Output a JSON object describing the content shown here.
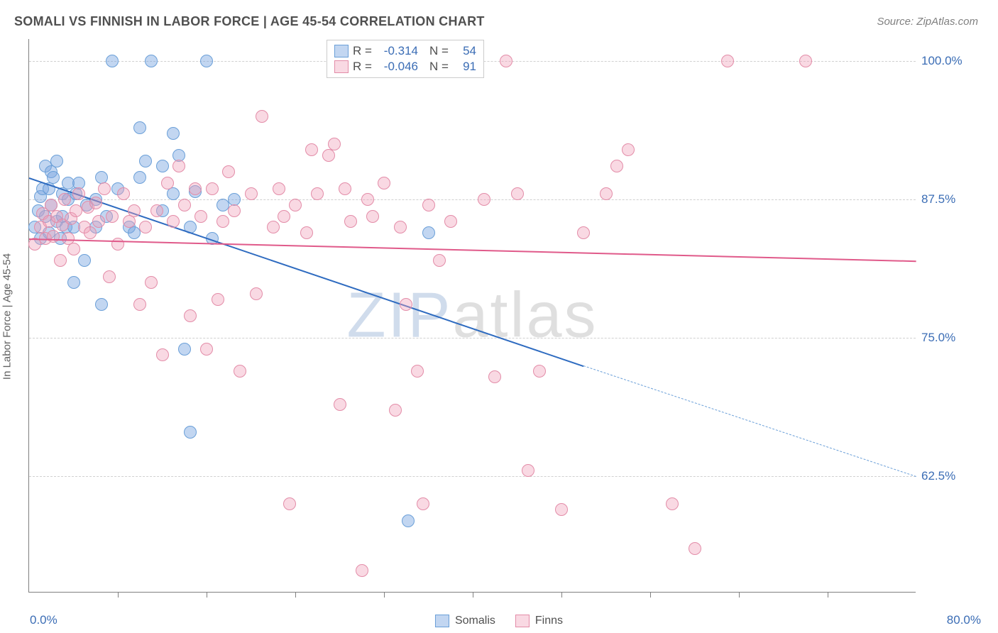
{
  "chart": {
    "type": "scatter",
    "title": "SOMALI VS FINNISH IN LABOR FORCE | AGE 45-54 CORRELATION CHART",
    "source": "Source: ZipAtlas.com",
    "ylabel": "In Labor Force | Age 45-54",
    "watermark_zip": "ZIP",
    "watermark_atlas": "atlas",
    "xlim": [
      0,
      80
    ],
    "ylim": [
      52,
      102
    ],
    "x_min_label": "0.0%",
    "x_max_label": "80.0%",
    "xticks": [
      8,
      16,
      24,
      32,
      40,
      48,
      56,
      64,
      72
    ],
    "yticks": [
      {
        "v": 100.0,
        "label": "100.0%"
      },
      {
        "v": 87.5,
        "label": "87.5%"
      },
      {
        "v": 75.0,
        "label": "75.0%"
      },
      {
        "v": 62.5,
        "label": "62.5%"
      }
    ],
    "grid_color": "#d0d0d0",
    "axis_color": "#808080",
    "tick_label_color": "#3b6db5",
    "series": [
      {
        "name": "Somalis",
        "color_fill": "rgba(120,165,225,0.45)",
        "color_stroke": "#6a9fd8",
        "r_label": "R =",
        "r_value": "-0.314",
        "n_label": "N =",
        "n_value": "54",
        "trend": {
          "x0": 0,
          "y0": 89.5,
          "x1": 50,
          "y1": 72.5,
          "color": "#2e6bc0",
          "width": 2.5,
          "dash": false
        },
        "trend_ext": {
          "x0": 50,
          "y0": 72.5,
          "x1": 80,
          "y1": 62.5,
          "color": "#6a9fd8",
          "width": 1.5,
          "dash": true
        },
        "points": [
          [
            0.5,
            85
          ],
          [
            0.8,
            86.5
          ],
          [
            1,
            84
          ],
          [
            1,
            87.8
          ],
          [
            1.2,
            88.5
          ],
          [
            1.5,
            86
          ],
          [
            1.5,
            90.5
          ],
          [
            1.8,
            84.5
          ],
          [
            1.8,
            88.5
          ],
          [
            2,
            90
          ],
          [
            2,
            87
          ],
          [
            2.2,
            89.5
          ],
          [
            2.5,
            85.5
          ],
          [
            2.5,
            91
          ],
          [
            2.8,
            84
          ],
          [
            3,
            88
          ],
          [
            3,
            86
          ],
          [
            3.3,
            85
          ],
          [
            3.5,
            87.5
          ],
          [
            3.5,
            89
          ],
          [
            4,
            80
          ],
          [
            4,
            85
          ],
          [
            4.2,
            88
          ],
          [
            4.5,
            89
          ],
          [
            5,
            82
          ],
          [
            5.2,
            87
          ],
          [
            6,
            85
          ],
          [
            6,
            87.5
          ],
          [
            6.5,
            89.5
          ],
          [
            6.5,
            78
          ],
          [
            7,
            86
          ],
          [
            7.5,
            100
          ],
          [
            8,
            88.5
          ],
          [
            9,
            85
          ],
          [
            9.5,
            84.5
          ],
          [
            10,
            94
          ],
          [
            10,
            89.5
          ],
          [
            10.5,
            91
          ],
          [
            11,
            100
          ],
          [
            12,
            86.5
          ],
          [
            12,
            90.5
          ],
          [
            13,
            88
          ],
          [
            13,
            93.5
          ],
          [
            13.5,
            91.5
          ],
          [
            14,
            74
          ],
          [
            14.5,
            85
          ],
          [
            14.5,
            66.5
          ],
          [
            15,
            88.2
          ],
          [
            16,
            100
          ],
          [
            16.5,
            84
          ],
          [
            17.5,
            87
          ],
          [
            18.5,
            87.5
          ],
          [
            34.2,
            58.5
          ],
          [
            36,
            84.5
          ]
        ]
      },
      {
        "name": "Finns",
        "color_fill": "rgba(240,160,185,0.40)",
        "color_stroke": "#e38ca8",
        "r_label": "R =",
        "r_value": "-0.046",
        "n_label": "N =",
        "n_value": "91",
        "trend": {
          "x0": 0,
          "y0": 84.0,
          "x1": 80,
          "y1": 82.0,
          "color": "#e05a8a",
          "width": 2.5,
          "dash": false
        },
        "points": [
          [
            0.5,
            83.5
          ],
          [
            1,
            85
          ],
          [
            1.2,
            86.2
          ],
          [
            1.5,
            84
          ],
          [
            1.8,
            85.5
          ],
          [
            2,
            87
          ],
          [
            2.2,
            84.2
          ],
          [
            2.5,
            86
          ],
          [
            2.8,
            82
          ],
          [
            3,
            85.2
          ],
          [
            3.2,
            87.5
          ],
          [
            3.5,
            84
          ],
          [
            3.8,
            85.8
          ],
          [
            4,
            83
          ],
          [
            4.2,
            86.5
          ],
          [
            4.5,
            88
          ],
          [
            5,
            85
          ],
          [
            5.3,
            86.8
          ],
          [
            5.5,
            84.5
          ],
          [
            6,
            87.2
          ],
          [
            6.3,
            85.5
          ],
          [
            6.8,
            88.5
          ],
          [
            7.2,
            80.5
          ],
          [
            7.5,
            86
          ],
          [
            8,
            83.5
          ],
          [
            8.5,
            88
          ],
          [
            9,
            85.5
          ],
          [
            9.5,
            86.5
          ],
          [
            10,
            78
          ],
          [
            10.5,
            85
          ],
          [
            11,
            80
          ],
          [
            11.5,
            86.5
          ],
          [
            12,
            73.5
          ],
          [
            12.5,
            89
          ],
          [
            13,
            85.5
          ],
          [
            13.5,
            90.5
          ],
          [
            14,
            87
          ],
          [
            14.5,
            77
          ],
          [
            15,
            88.5
          ],
          [
            15.5,
            86
          ],
          [
            16,
            74
          ],
          [
            16.5,
            88.5
          ],
          [
            17,
            78.5
          ],
          [
            17.5,
            85.5
          ],
          [
            18,
            90
          ],
          [
            18.5,
            86.5
          ],
          [
            19,
            72
          ],
          [
            20,
            88
          ],
          [
            20.5,
            79
          ],
          [
            21,
            95
          ],
          [
            22,
            85
          ],
          [
            22.5,
            88.5
          ],
          [
            23,
            86
          ],
          [
            23.5,
            60
          ],
          [
            24,
            87
          ],
          [
            25,
            84.5
          ],
          [
            25.5,
            92
          ],
          [
            26,
            88
          ],
          [
            27,
            91.5
          ],
          [
            27.5,
            92.5
          ],
          [
            28,
            69
          ],
          [
            28.5,
            88.5
          ],
          [
            29,
            85.5
          ],
          [
            30,
            54
          ],
          [
            30.5,
            87.5
          ],
          [
            31,
            86
          ],
          [
            32,
            89
          ],
          [
            33,
            68.5
          ],
          [
            33.5,
            85
          ],
          [
            34,
            78
          ],
          [
            35,
            72
          ],
          [
            35.5,
            60
          ],
          [
            36,
            87
          ],
          [
            37,
            82
          ],
          [
            38,
            85.5
          ],
          [
            40,
            100
          ],
          [
            41,
            87.5
          ],
          [
            42,
            71.5
          ],
          [
            43,
            100
          ],
          [
            44,
            88
          ],
          [
            45,
            63
          ],
          [
            46,
            72
          ],
          [
            48,
            59.5
          ],
          [
            50,
            84.5
          ],
          [
            52,
            88
          ],
          [
            53,
            90.5
          ],
          [
            54,
            92
          ],
          [
            58,
            60
          ],
          [
            60,
            56
          ],
          [
            63,
            100
          ],
          [
            70,
            100
          ]
        ]
      }
    ],
    "legend_bottom": [
      {
        "label": "Somalis",
        "fill": "rgba(120,165,225,0.45)",
        "stroke": "#6a9fd8"
      },
      {
        "label": "Finns",
        "fill": "rgba(240,160,185,0.40)",
        "stroke": "#e38ca8"
      }
    ]
  }
}
